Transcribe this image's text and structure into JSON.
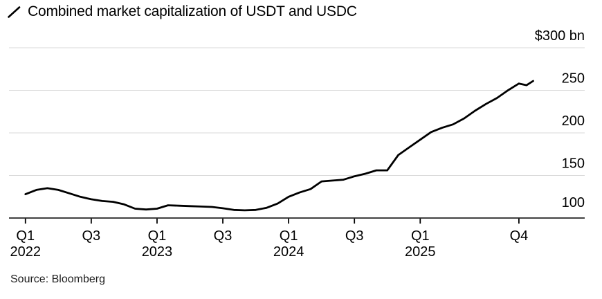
{
  "chart_data": {
    "type": "line",
    "title": "Combined market capitalization of USDT and USDC",
    "source": "Source: Bloomberg",
    "unit": "$ bn",
    "line_color": "#000000",
    "grid_color": "#d9d9d9",
    "axis_color": "#000000",
    "grid": "horizontal",
    "legend_position": "top-left",
    "ylim": [
      100,
      300
    ],
    "xlim": [
      -1.5,
      51
    ],
    "y_ticks": [
      {
        "value": 300,
        "label": "$300 bn"
      },
      {
        "value": 250,
        "label": "250"
      },
      {
        "value": 200,
        "label": "200"
      },
      {
        "value": 150,
        "label": "150"
      },
      {
        "value": 100,
        "label": "100"
      }
    ],
    "x_unit": "months since 2022-01",
    "x_ticks": [
      {
        "x": 0,
        "label": "Q1",
        "year": "2022"
      },
      {
        "x": 6,
        "label": "Q3",
        "year": ""
      },
      {
        "x": 12,
        "label": "Q1",
        "year": "2023"
      },
      {
        "x": 18,
        "label": "Q3",
        "year": ""
      },
      {
        "x": 24,
        "label": "Q1",
        "year": "2024"
      },
      {
        "x": 30,
        "label": "Q3",
        "year": ""
      },
      {
        "x": 36,
        "label": "Q1",
        "year": "2025"
      },
      {
        "x": 45,
        "label": "Q4",
        "year": ""
      }
    ],
    "series": [
      {
        "name": "Combined market capitalization of USDT and USDC",
        "color": "#000000",
        "x": [
          0,
          1,
          2,
          3,
          4,
          5,
          6,
          7,
          8,
          9,
          10,
          11,
          12,
          13,
          14,
          15,
          16,
          17,
          18,
          19,
          20,
          21,
          22,
          23,
          24,
          25,
          26,
          27,
          28,
          29,
          30,
          31,
          32,
          33,
          34,
          35,
          36,
          37,
          38,
          39,
          40,
          41,
          42,
          43,
          44,
          45,
          45.7,
          46.3
        ],
        "values": [
          128,
          133,
          135,
          133,
          129,
          125,
          122,
          120,
          119,
          116,
          111,
          110,
          111,
          115,
          114.5,
          114,
          113.5,
          113,
          111.5,
          109.5,
          109,
          109.5,
          112,
          117,
          125,
          130,
          134,
          143,
          144,
          145,
          149,
          152,
          156,
          156,
          174,
          183,
          192,
          201,
          206,
          210,
          217,
          226,
          234,
          241,
          250,
          258,
          256,
          261
        ]
      }
    ]
  }
}
